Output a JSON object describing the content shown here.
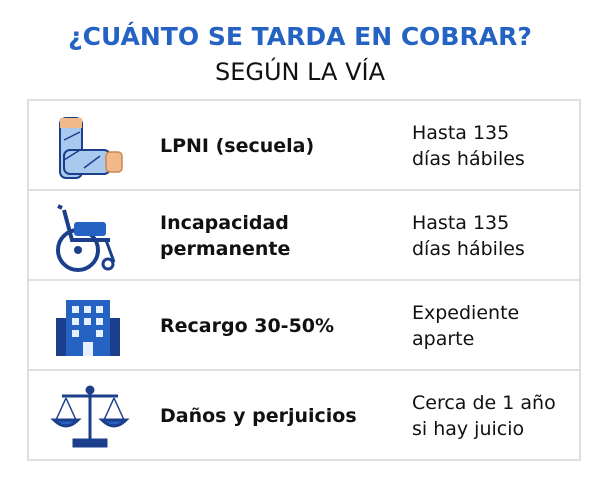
{
  "header": {
    "title": "¿CUÁNTO SE TARDA EN COBRAR?",
    "subtitle": "SEGÚN LA VÍA"
  },
  "rows": [
    {
      "label": [
        "LPNI (secuela)"
      ],
      "time": [
        "Hasta 135",
        "días hábiles"
      ]
    },
    {
      "label": [
        "Incapacidad",
        "permanente"
      ],
      "time": [
        "Hasta 135",
        "días hábiles"
      ]
    },
    {
      "label": [
        "Recargo 30-50%"
      ],
      "time": [
        "Expediente",
        "aparte"
      ]
    },
    {
      "label": [
        "Daños y perjuicios"
      ],
      "time": [
        "Cerca de 1 año",
        "si hay juicio"
      ]
    }
  ]
}
